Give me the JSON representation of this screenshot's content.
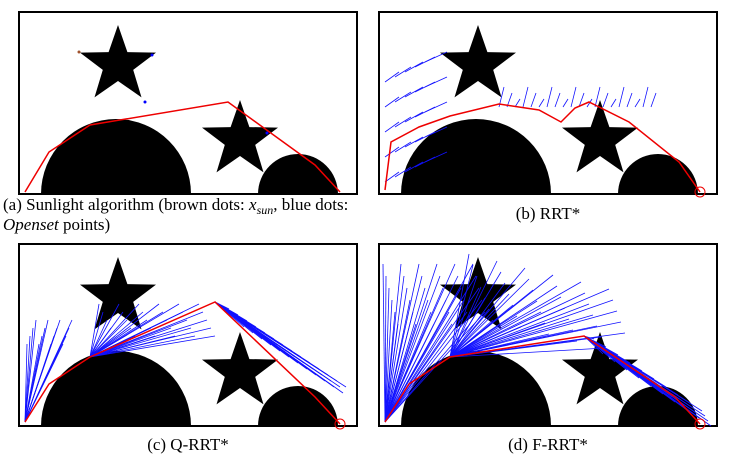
{
  "panels": [
    {
      "caption": {
        "label": "(a) Sunlight algorithm (brown dots: ",
        "var": "x",
        "sub": "sun",
        "mid": ", blue dots:",
        "line2_var": "Openset",
        "line2_rest": " points)"
      }
    },
    {
      "caption": "(b) RRT*"
    },
    {
      "caption": "(c) Q-RRT*"
    },
    {
      "caption": "(d) F-RRT*"
    }
  ]
}
